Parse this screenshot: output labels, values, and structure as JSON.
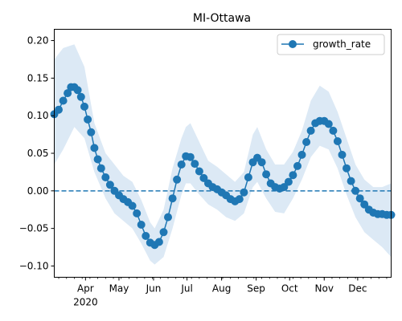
{
  "chart_data": {
    "type": "line",
    "title": "MI-Ottawa",
    "xlabel": "",
    "ylabel": "",
    "x_range": [
      "2020-03-04",
      "2020-12-31"
    ],
    "ylim": [
      -0.115,
      0.215
    ],
    "y_ticks": [
      -0.1,
      -0.05,
      0.0,
      0.05,
      0.1,
      0.15,
      0.2
    ],
    "y_tick_labels": [
      "−0.10",
      "−0.05",
      "0.00",
      "0.05",
      "0.10",
      "0.15",
      "0.20"
    ],
    "x_ticks": [
      {
        "date": "2020-04-01",
        "label": "Apr",
        "sublabel": "2020"
      },
      {
        "date": "2020-05-01",
        "label": "May"
      },
      {
        "date": "2020-06-01",
        "label": "Jun"
      },
      {
        "date": "2020-07-01",
        "label": "Jul"
      },
      {
        "date": "2020-08-01",
        "label": "Aug"
      },
      {
        "date": "2020-09-01",
        "label": "Sep"
      },
      {
        "date": "2020-10-01",
        "label": "Oct"
      },
      {
        "date": "2020-11-01",
        "label": "Nov"
      },
      {
        "date": "2020-12-01",
        "label": "Dec"
      }
    ],
    "reference_line": {
      "y": 0.0,
      "style": "dashed"
    },
    "legend": {
      "position": "top-right",
      "entries": [
        "growth_rate"
      ]
    },
    "grid": false,
    "colors": {
      "series": "#1f77b4",
      "band": "#dce9f5"
    },
    "series": [
      {
        "name": "growth_rate",
        "marker": "circle",
        "points": [
          [
            "2020-03-04",
            0.102
          ],
          [
            "2020-03-08",
            0.108
          ],
          [
            "2020-03-12",
            0.12
          ],
          [
            "2020-03-16",
            0.13
          ],
          [
            "2020-03-19",
            0.138
          ],
          [
            "2020-03-22",
            0.138
          ],
          [
            "2020-03-25",
            0.134
          ],
          [
            "2020-03-28",
            0.125
          ],
          [
            "2020-03-31",
            0.112
          ],
          [
            "2020-04-03",
            0.095
          ],
          [
            "2020-04-06",
            0.078
          ],
          [
            "2020-04-09",
            0.057
          ],
          [
            "2020-04-12",
            0.042
          ],
          [
            "2020-04-15",
            0.03
          ],
          [
            "2020-04-19",
            0.018
          ],
          [
            "2020-04-23",
            0.008
          ],
          [
            "2020-04-27",
            0.0
          ],
          [
            "2020-05-01",
            -0.006
          ],
          [
            "2020-05-05",
            -0.011
          ],
          [
            "2020-05-09",
            -0.015
          ],
          [
            "2020-05-13",
            -0.02
          ],
          [
            "2020-05-17",
            -0.03
          ],
          [
            "2020-05-21",
            -0.045
          ],
          [
            "2020-05-25",
            -0.06
          ],
          [
            "2020-05-29",
            -0.069
          ],
          [
            "2020-06-02",
            -0.072
          ],
          [
            "2020-06-06",
            -0.068
          ],
          [
            "2020-06-10",
            -0.055
          ],
          [
            "2020-06-14",
            -0.035
          ],
          [
            "2020-06-18",
            -0.01
          ],
          [
            "2020-06-22",
            0.015
          ],
          [
            "2020-06-26",
            0.035
          ],
          [
            "2020-06-30",
            0.046
          ],
          [
            "2020-07-04",
            0.045
          ],
          [
            "2020-07-08",
            0.036
          ],
          [
            "2020-07-12",
            0.026
          ],
          [
            "2020-07-16",
            0.017
          ],
          [
            "2020-07-20",
            0.01
          ],
          [
            "2020-07-24",
            0.005
          ],
          [
            "2020-07-28",
            0.002
          ],
          [
            "2020-08-01",
            -0.002
          ],
          [
            "2020-08-05",
            -0.006
          ],
          [
            "2020-08-09",
            -0.011
          ],
          [
            "2020-08-13",
            -0.014
          ],
          [
            "2020-08-17",
            -0.011
          ],
          [
            "2020-08-21",
            -0.002
          ],
          [
            "2020-08-25",
            0.018
          ],
          [
            "2020-08-29",
            0.038
          ],
          [
            "2020-09-02",
            0.044
          ],
          [
            "2020-09-06",
            0.038
          ],
          [
            "2020-09-10",
            0.022
          ],
          [
            "2020-09-14",
            0.01
          ],
          [
            "2020-09-18",
            0.005
          ],
          [
            "2020-09-22",
            0.003
          ],
          [
            "2020-09-26",
            0.005
          ],
          [
            "2020-09-30",
            0.012
          ],
          [
            "2020-10-04",
            0.021
          ],
          [
            "2020-10-08",
            0.033
          ],
          [
            "2020-10-12",
            0.048
          ],
          [
            "2020-10-16",
            0.065
          ],
          [
            "2020-10-20",
            0.08
          ],
          [
            "2020-10-24",
            0.09
          ],
          [
            "2020-10-28",
            0.093
          ],
          [
            "2020-11-01",
            0.093
          ],
          [
            "2020-11-05",
            0.089
          ],
          [
            "2020-11-09",
            0.08
          ],
          [
            "2020-11-13",
            0.066
          ],
          [
            "2020-11-17",
            0.048
          ],
          [
            "2020-11-21",
            0.03
          ],
          [
            "2020-11-25",
            0.013
          ],
          [
            "2020-11-29",
            0.0
          ],
          [
            "2020-12-03",
            -0.01
          ],
          [
            "2020-12-07",
            -0.018
          ],
          [
            "2020-12-11",
            -0.025
          ],
          [
            "2020-12-15",
            -0.029
          ],
          [
            "2020-12-19",
            -0.031
          ],
          [
            "2020-12-23",
            -0.031
          ],
          [
            "2020-12-27",
            -0.032
          ],
          [
            "2020-12-31",
            -0.032
          ]
        ],
        "band": [
          [
            "2020-03-04",
            0.035,
            0.175
          ],
          [
            "2020-03-12",
            0.055,
            0.19
          ],
          [
            "2020-03-22",
            0.085,
            0.195
          ],
          [
            "2020-03-31",
            0.07,
            0.165
          ],
          [
            "2020-04-09",
            0.025,
            0.09
          ],
          [
            "2020-04-19",
            -0.01,
            0.05
          ],
          [
            "2020-04-27",
            -0.03,
            0.035
          ],
          [
            "2020-05-05",
            -0.04,
            0.02
          ],
          [
            "2020-05-13",
            -0.05,
            0.012
          ],
          [
            "2020-05-21",
            -0.07,
            -0.012
          ],
          [
            "2020-05-29",
            -0.093,
            -0.042
          ],
          [
            "2020-06-02",
            -0.098,
            -0.05
          ],
          [
            "2020-06-10",
            -0.088,
            -0.025
          ],
          [
            "2020-06-18",
            -0.05,
            0.03
          ],
          [
            "2020-06-26",
            -0.005,
            0.07
          ],
          [
            "2020-06-30",
            0.01,
            0.085
          ],
          [
            "2020-07-04",
            0.01,
            0.09
          ],
          [
            "2020-07-12",
            -0.005,
            0.065
          ],
          [
            "2020-07-20",
            -0.018,
            0.04
          ],
          [
            "2020-07-28",
            -0.025,
            0.032
          ],
          [
            "2020-08-05",
            -0.035,
            0.022
          ],
          [
            "2020-08-13",
            -0.04,
            0.012
          ],
          [
            "2020-08-21",
            -0.03,
            0.025
          ],
          [
            "2020-08-29",
            0.005,
            0.075
          ],
          [
            "2020-09-02",
            0.012,
            0.085
          ],
          [
            "2020-09-10",
            -0.01,
            0.055
          ],
          [
            "2020-09-18",
            -0.028,
            0.035
          ],
          [
            "2020-09-26",
            -0.03,
            0.035
          ],
          [
            "2020-10-04",
            -0.01,
            0.052
          ],
          [
            "2020-10-12",
            0.015,
            0.08
          ],
          [
            "2020-10-20",
            0.045,
            0.12
          ],
          [
            "2020-10-28",
            0.06,
            0.14
          ],
          [
            "2020-11-05",
            0.055,
            0.132
          ],
          [
            "2020-11-13",
            0.03,
            0.105
          ],
          [
            "2020-11-21",
            -0.005,
            0.07
          ],
          [
            "2020-11-29",
            -0.035,
            0.035
          ],
          [
            "2020-12-07",
            -0.055,
            0.015
          ],
          [
            "2020-12-15",
            -0.065,
            0.005
          ],
          [
            "2020-12-23",
            -0.075,
            0.005
          ],
          [
            "2020-12-31",
            -0.088,
            0.01
          ]
        ]
      }
    ]
  }
}
